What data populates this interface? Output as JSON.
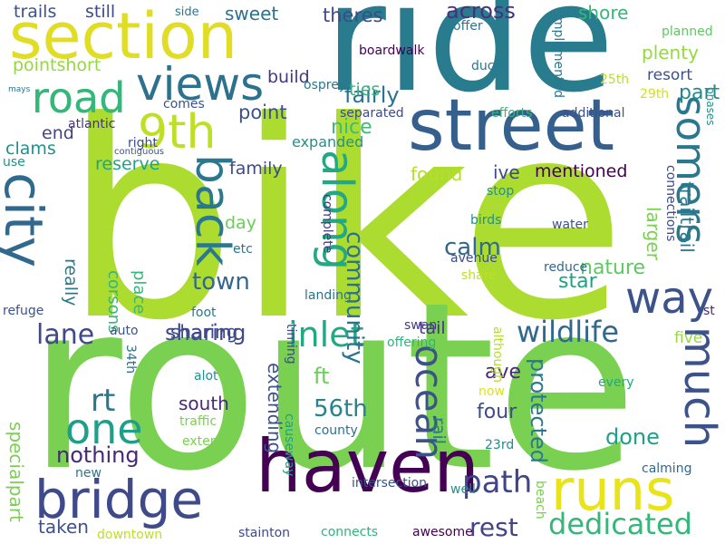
{
  "background": "#ffffff",
  "words": [
    {
      "text": "bike",
      "color": "#addc30"
    },
    {
      "text": "route",
      "color": "#7ad151"
    },
    {
      "text": "ride",
      "color": "#287c8e"
    },
    {
      "text": "street",
      "color": "#355f8d"
    },
    {
      "text": "section",
      "color": "#e0dd24"
    },
    {
      "text": "haven",
      "color": "#440154"
    },
    {
      "text": "bridge",
      "color": "#3e4a89"
    },
    {
      "text": "runs",
      "color": "#e8e419"
    },
    {
      "text": "city",
      "color": "#31688e"
    },
    {
      "text": "views",
      "color": "#2c728e"
    },
    {
      "text": "9th",
      "color": "#bddf26"
    },
    {
      "text": "road",
      "color": "#35b779"
    },
    {
      "text": "way",
      "color": "#3b528b"
    },
    {
      "text": "along",
      "color": "#22a884"
    },
    {
      "text": "back",
      "color": "#2a788e"
    },
    {
      "text": "somers",
      "color": "#2a788e"
    },
    {
      "text": "much",
      "color": "#3b528b"
    },
    {
      "text": "one",
      "color": "#1f9e89"
    },
    {
      "text": "ocean",
      "color": "#3b528b"
    },
    {
      "text": "dedicated",
      "color": "#35b779"
    },
    {
      "text": "inlet",
      "color": "#22a884"
    },
    {
      "text": "wildlife",
      "color": "#31688e"
    },
    {
      "text": "path",
      "color": "#414487"
    },
    {
      "text": "rt",
      "color": "#2a788e"
    },
    {
      "text": "lane",
      "color": "#3e4a89"
    },
    {
      "text": "town",
      "color": "#31688e"
    },
    {
      "text": "community",
      "color": "#2c728e"
    },
    {
      "text": "nature",
      "color": "#5ec962"
    },
    {
      "text": "rest",
      "color": "#414487"
    },
    {
      "text": "sharing",
      "color": "#3e4a89"
    },
    {
      "text": "nothing",
      "color": "#482878"
    },
    {
      "text": "trailtrail",
      "color": "#2a788e"
    },
    {
      "text": "protected",
      "color": "#2a788e"
    },
    {
      "text": "calm",
      "color": "#31688e"
    },
    {
      "text": "across",
      "color": "#46337e"
    },
    {
      "text": "theres",
      "color": "#3e4a89"
    },
    {
      "text": "shore",
      "color": "#35b779"
    },
    {
      "text": "plenty",
      "color": "#95d840"
    },
    {
      "text": "part",
      "color": "#23898e"
    },
    {
      "text": "done",
      "color": "#1fa188"
    },
    {
      "text": "56th",
      "color": "#26828e"
    },
    {
      "text": "larger",
      "color": "#7ad151"
    },
    {
      "text": "fairly",
      "color": "#2c728e"
    },
    {
      "text": "extending",
      "color": "#3b528b"
    },
    {
      "text": "corsons",
      "color": "#35b779"
    },
    {
      "text": "place",
      "color": "#35b779"
    },
    {
      "text": "specialpart",
      "color": "#7ad151"
    },
    {
      "text": "point",
      "color": "#3b528b"
    },
    {
      "text": "nice",
      "color": "#3fbc73"
    },
    {
      "text": "ft",
      "color": "#6ccd5a"
    },
    {
      "text": "four",
      "color": "#3e4a89"
    },
    {
      "text": "star",
      "color": "#1fa188"
    },
    {
      "text": "ave",
      "color": "#482878"
    },
    {
      "text": "south",
      "color": "#482878"
    },
    {
      "text": "sweet",
      "color": "#2c728e"
    },
    {
      "text": "pointshort",
      "color": "#95d840"
    },
    {
      "text": "road",
      "color": "#35b779"
    },
    {
      "text": "reserve",
      "color": "#20a486"
    },
    {
      "text": "family",
      "color": "#3e4a89"
    },
    {
      "text": "mentioned",
      "color": "#440154"
    },
    {
      "text": "ive",
      "color": "#3e4a89"
    },
    {
      "text": "found",
      "color": "#b5de2b"
    },
    {
      "text": "build",
      "color": "#443983"
    },
    {
      "text": "ties",
      "color": "#2fb47c"
    },
    {
      "text": "resort",
      "color": "#3b528b"
    },
    {
      "text": "still",
      "color": "#3e4a89"
    },
    {
      "text": "trails",
      "color": "#3b528b"
    },
    {
      "text": "clams",
      "color": "#21918c"
    },
    {
      "text": "end",
      "color": "#414487"
    },
    {
      "text": "day",
      "color": "#6ccd5a"
    },
    {
      "text": "taken",
      "color": "#3b528b"
    },
    {
      "text": "rail",
      "color": "#2a788e"
    },
    {
      "text": "tail",
      "color": "#443983"
    },
    {
      "text": "five",
      "color": "#95d840"
    },
    {
      "text": "expanded",
      "color": "#21918c"
    },
    {
      "text": "really",
      "color": "#2a788e"
    },
    {
      "text": "foot",
      "color": "#2a788e"
    },
    {
      "text": "refuge",
      "color": "#3b528b"
    },
    {
      "text": "auto",
      "color": "#3b528b"
    },
    {
      "text": "sharing",
      "color": "#3e4a89"
    },
    {
      "text": "34th",
      "color": "#2c728e"
    },
    {
      "text": "etc",
      "color": "#2c728e"
    },
    {
      "text": "alot",
      "color": "#21918c"
    },
    {
      "text": "traffic",
      "color": "#7ad151"
    },
    {
      "text": "extend",
      "color": "#7ad151"
    },
    {
      "text": "new",
      "color": "#2c728e"
    },
    {
      "text": "downtown",
      "color": "#bddf26"
    },
    {
      "text": "stainton",
      "color": "#3e4a89"
    },
    {
      "text": "connects",
      "color": "#2fb47c"
    },
    {
      "text": "awesome",
      "color": "#440154"
    },
    {
      "text": "intersection",
      "color": "#3b528b"
    },
    {
      "text": "well",
      "color": "#21918c"
    },
    {
      "text": "county",
      "color": "#2c728e"
    },
    {
      "text": "timing",
      "color": "#3e4a89"
    },
    {
      "text": "swan",
      "color": "#443983"
    },
    {
      "text": "offering",
      "color": "#2fb47c"
    },
    {
      "text": "every",
      "color": "#22a884"
    },
    {
      "text": "now",
      "color": "#dde318"
    },
    {
      "text": "23rd",
      "color": "#23898e"
    },
    {
      "text": "beach",
      "color": "#7ad151"
    },
    {
      "text": "although",
      "color": "#b5de2b"
    },
    {
      "text": "calming",
      "color": "#31688e"
    },
    {
      "text": "reduce",
      "color": "#31688e"
    },
    {
      "text": "st",
      "color": "#482878"
    },
    {
      "text": "water",
      "color": "#3b528b"
    },
    {
      "text": "share",
      "color": "#bddf26"
    },
    {
      "text": "avenue",
      "color": "#3e4a89"
    },
    {
      "text": "birds",
      "color": "#21918c"
    },
    {
      "text": "stop",
      "color": "#21918c"
    },
    {
      "text": "connections",
      "color": "#3e4a89"
    },
    {
      "text": "complete",
      "color": "#443983"
    },
    {
      "text": "causeway",
      "color": "#1fa188"
    },
    {
      "text": "landing",
      "color": "#2c728e"
    },
    {
      "text": "separated",
      "color": "#3e4a89"
    },
    {
      "text": "additional",
      "color": "#3b528b"
    },
    {
      "text": "efforts",
      "color": "#35b779"
    },
    {
      "text": "29th",
      "color": "#d2e21b"
    },
    {
      "text": "25th",
      "color": "#bddf26"
    },
    {
      "text": "implemented",
      "color": "#2a788e"
    },
    {
      "text": "ducks",
      "color": "#2a788e"
    },
    {
      "text": "offer",
      "color": "#2c728e"
    },
    {
      "text": "boardwalk",
      "color": "#440154"
    },
    {
      "text": "osprey",
      "color": "#2a788e"
    },
    {
      "text": "planned",
      "color": "#5ec962"
    },
    {
      "text": "phases",
      "color": "#21918c"
    },
    {
      "text": "side",
      "color": "#2a788e"
    },
    {
      "text": "comes",
      "color": "#3b528b"
    },
    {
      "text": "atlantic",
      "color": "#46337e"
    },
    {
      "text": "right",
      "color": "#3e4a89"
    },
    {
      "text": "contiguous",
      "color": "#3b528b"
    },
    {
      "text": "use",
      "color": "#21918c"
    },
    {
      "text": "mays",
      "color": "#2a788e"
    }
  ]
}
